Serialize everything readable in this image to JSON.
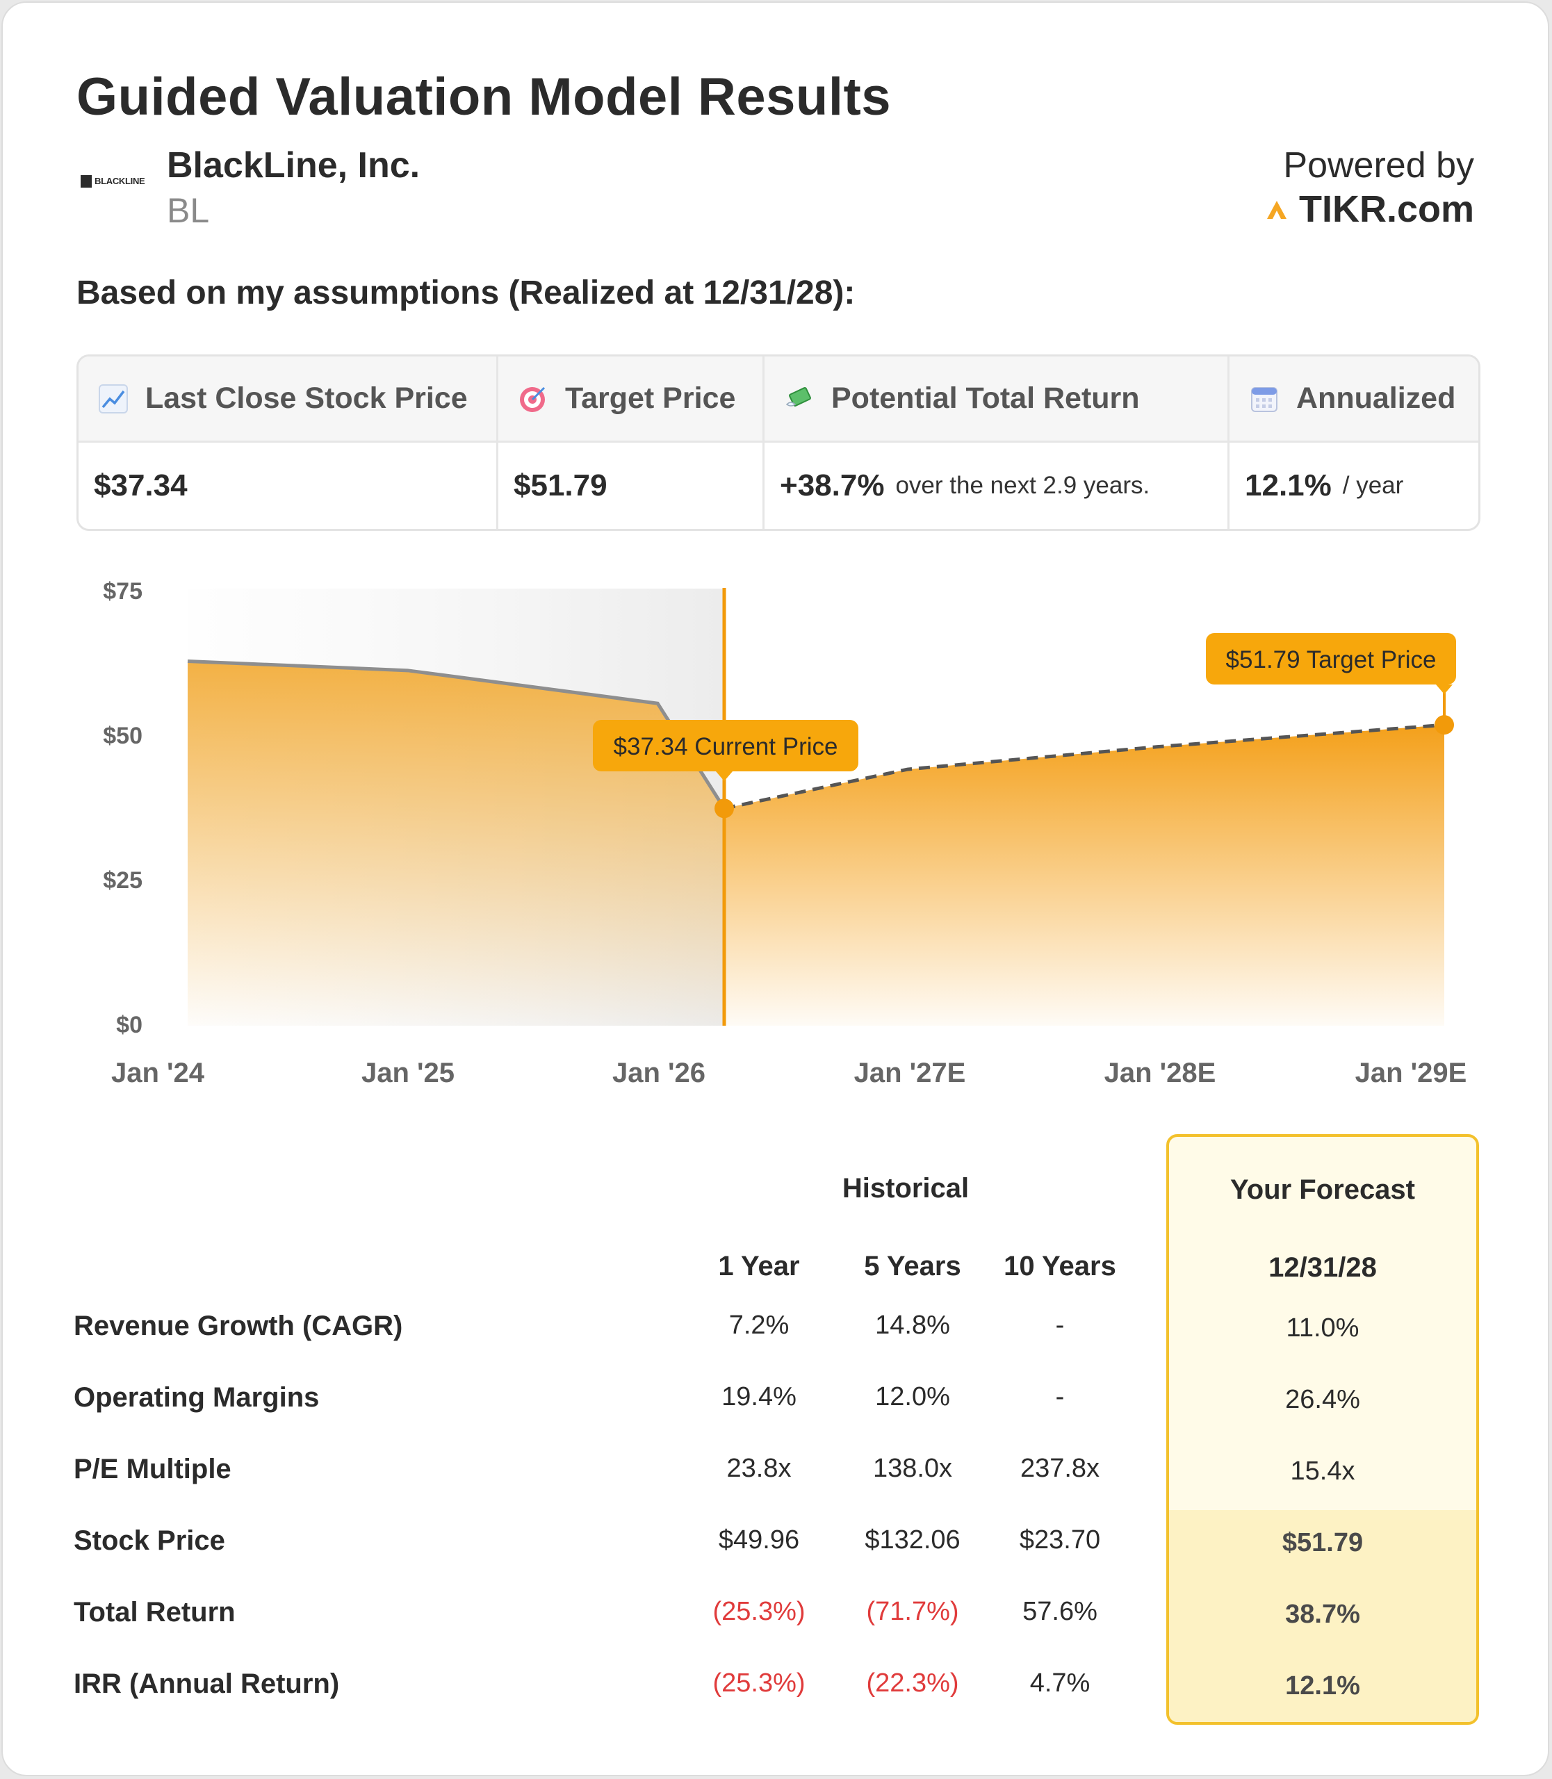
{
  "title": "Guided Valuation Model Results",
  "company": {
    "name": "BlackLine, Inc.",
    "ticker": "BL",
    "logo_text": "BLACKLINE"
  },
  "powered": {
    "label": "Powered by",
    "brand": "TIKR.com"
  },
  "assumption_line": "Based on my assumptions (Realized at 12/31/28):",
  "metrics": {
    "last_close": {
      "label": "Last Close Stock Price",
      "value": "$37.34",
      "icon": "chart-increasing-icon"
    },
    "target": {
      "label": "Target Price",
      "value": "$51.79",
      "icon": "target-icon"
    },
    "total_return": {
      "label": "Potential Total Return",
      "value": "+38.7%",
      "suffix": "over the next 2.9 years.",
      "icon": "money-wings-icon"
    },
    "annualized": {
      "label": "Annualized",
      "value": "12.1%",
      "suffix": "/ year",
      "icon": "calendar-icon"
    }
  },
  "colors": {
    "accent": "#f5a623",
    "accent_dark": "#f29a0a",
    "negative": "#e03b3b",
    "history_line": "#8e8e8e"
  },
  "chart_data": {
    "type": "area",
    "y_ticks": [
      "$75",
      "$50",
      "$25",
      "$0"
    ],
    "ylim": [
      0,
      75
    ],
    "x_ticks": [
      "Jan '24",
      "Jan '25",
      "Jan '26",
      "Jan '27E",
      "Jan '28E",
      "Jan '29E"
    ],
    "xlim": [
      "2024-01-01",
      "2029-01-01"
    ],
    "series": [
      {
        "values": [
          {
            "x": "2024-01-01",
            "y": 62.8
          },
          {
            "x": "2025-01-01",
            "y": 61.2
          },
          {
            "x": "2026-01-01",
            "y": 55.5
          },
          {
            "x": "2026-03-01",
            "y": 37.34
          }
        ]
      },
      {
        "values": [
          {
            "x": "2026-03-01",
            "y": 37.34
          },
          {
            "x": "2027-01-01",
            "y": 44.1
          },
          {
            "x": "2028-01-01",
            "y": 48.0
          },
          {
            "x": "2029-01-01",
            "y": 51.79
          }
        ]
      }
    ],
    "annotations": [
      {
        "label": "$37.34 Current Price",
        "x": "2026-03-01",
        "y": 37.34
      },
      {
        "label": "$51.79 Target Price",
        "x": "2029-01-01",
        "y": 51.79
      }
    ],
    "divider_x": "2026-03-01"
  },
  "table": {
    "historical_header": "Historical",
    "forecast_header": "Your Forecast",
    "columns": [
      "1 Year",
      "5 Years",
      "10 Years",
      "12/31/28"
    ],
    "rows": [
      {
        "label": "Revenue Growth (CAGR)",
        "values": [
          "7.2%",
          "14.8%",
          "-",
          "11.0%"
        ]
      },
      {
        "label": "Operating Margins",
        "values": [
          "19.4%",
          "12.0%",
          "-",
          "26.4%"
        ]
      },
      {
        "label": "P/E Multiple",
        "values": [
          "23.8x",
          "138.0x",
          "237.8x",
          "15.4x"
        ]
      },
      {
        "label": "Stock Price",
        "values": [
          "$49.96",
          "$132.06",
          "$23.70",
          "$51.79"
        ]
      },
      {
        "label": "Total Return",
        "values": [
          "(25.3%)",
          "(71.7%)",
          "57.6%",
          "38.7%"
        ]
      },
      {
        "label": "IRR (Annual Return)",
        "values": [
          "(25.3%)",
          "(22.3%)",
          "4.7%",
          "12.1%"
        ]
      }
    ]
  }
}
